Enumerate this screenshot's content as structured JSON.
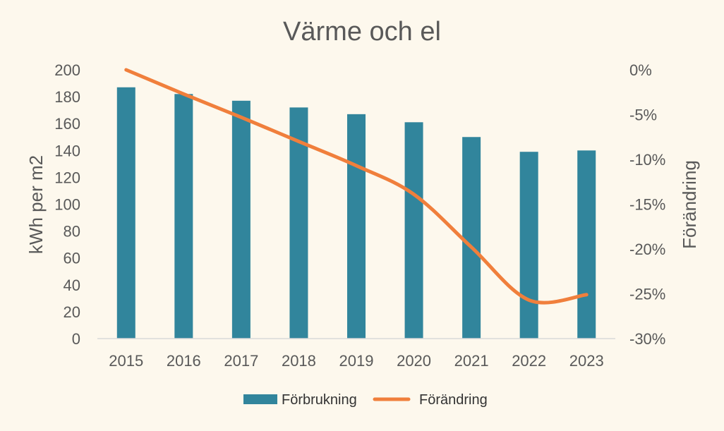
{
  "chart_data": {
    "type": "bar",
    "title": "Värme och el",
    "categories": [
      "2015",
      "2016",
      "2017",
      "2018",
      "2019",
      "2020",
      "2021",
      "2022",
      "2023"
    ],
    "series": [
      {
        "name": "Förbrukning",
        "type": "bar",
        "axis": "left",
        "color": "#31859c",
        "values": [
          187,
          182,
          177,
          172,
          167,
          161,
          150,
          139,
          140
        ]
      },
      {
        "name": "Förändring",
        "type": "line",
        "axis": "right",
        "color": "#f07f3c",
        "smooth": true,
        "values": [
          0,
          -2.7,
          -5.3,
          -8.0,
          -10.7,
          -13.9,
          -19.8,
          -25.7,
          -25.1
        ]
      }
    ],
    "ylabel_left": "kWh per m2",
    "ylabel_right": "Förändring",
    "ylim_left": [
      0,
      200
    ],
    "yticks_left": [
      "0",
      "20",
      "40",
      "60",
      "80",
      "100",
      "120",
      "140",
      "160",
      "180",
      "200"
    ],
    "ylim_right": [
      -30,
      0
    ],
    "yticks_right": [
      "-30%",
      "-25%",
      "-20%",
      "-15%",
      "-10%",
      "-5%",
      "0%"
    ],
    "grid": false,
    "legend_position": "bottom"
  }
}
